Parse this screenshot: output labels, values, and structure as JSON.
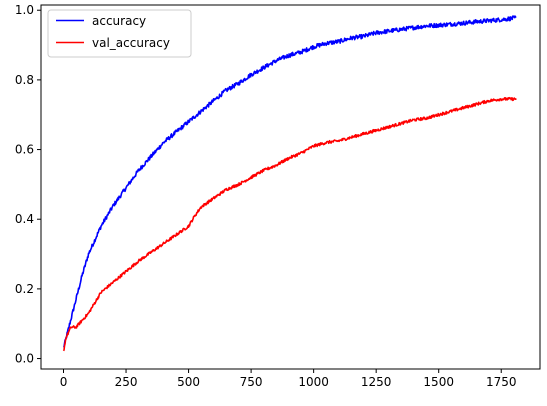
{
  "chart_data": {
    "type": "line",
    "title": "",
    "xlabel": "",
    "ylabel": "",
    "xlim": [
      -90,
      1905
    ],
    "ylim": [
      -0.03,
      1.015
    ],
    "xticks": [
      0,
      250,
      500,
      750,
      1000,
      1250,
      1500,
      1750
    ],
    "yticks": [
      0.0,
      0.2,
      0.4,
      0.6,
      0.8,
      1.0
    ],
    "xtick_labels": [
      "0",
      "250",
      "500",
      "750",
      "1000",
      "1250",
      "1500",
      "1750"
    ],
    "ytick_labels": [
      "0.0",
      "0.2",
      "0.4",
      "0.6",
      "0.8",
      "1.0"
    ],
    "grid": false,
    "legend_position": "top-left",
    "series": [
      {
        "name": "accuracy",
        "color": "#0000ff",
        "noise": 0.006,
        "x": [
          0,
          25,
          50,
          75,
          100,
          150,
          200,
          250,
          300,
          350,
          400,
          450,
          500,
          550,
          600,
          650,
          700,
          750,
          800,
          850,
          900,
          950,
          1000,
          1050,
          1100,
          1150,
          1200,
          1250,
          1300,
          1350,
          1400,
          1450,
          1500,
          1550,
          1600,
          1650,
          1700,
          1750,
          1810
        ],
        "values": [
          0.03,
          0.1,
          0.17,
          0.24,
          0.3,
          0.38,
          0.44,
          0.49,
          0.54,
          0.58,
          0.62,
          0.65,
          0.68,
          0.71,
          0.74,
          0.77,
          0.79,
          0.815,
          0.835,
          0.855,
          0.87,
          0.88,
          0.895,
          0.905,
          0.91,
          0.92,
          0.925,
          0.935,
          0.94,
          0.945,
          0.95,
          0.955,
          0.957,
          0.96,
          0.963,
          0.967,
          0.97,
          0.973,
          0.978
        ]
      },
      {
        "name": "val_accuracy",
        "color": "#ff0000",
        "noise": 0.004,
        "x": [
          0,
          10,
          30,
          50,
          75,
          100,
          125,
          150,
          200,
          250,
          300,
          350,
          400,
          450,
          500,
          525,
          550,
          600,
          650,
          700,
          750,
          800,
          850,
          900,
          950,
          1000,
          1050,
          1100,
          1150,
          1200,
          1250,
          1300,
          1350,
          1400,
          1450,
          1500,
          1550,
          1600,
          1650,
          1700,
          1750,
          1810
        ],
        "values": [
          0.02,
          0.06,
          0.09,
          0.09,
          0.11,
          0.13,
          0.16,
          0.19,
          0.22,
          0.25,
          0.28,
          0.305,
          0.33,
          0.355,
          0.38,
          0.41,
          0.435,
          0.46,
          0.485,
          0.5,
          0.52,
          0.54,
          0.555,
          0.575,
          0.59,
          0.61,
          0.62,
          0.625,
          0.635,
          0.645,
          0.655,
          0.665,
          0.675,
          0.685,
          0.69,
          0.7,
          0.71,
          0.72,
          0.73,
          0.74,
          0.745,
          0.745
        ]
      }
    ]
  }
}
